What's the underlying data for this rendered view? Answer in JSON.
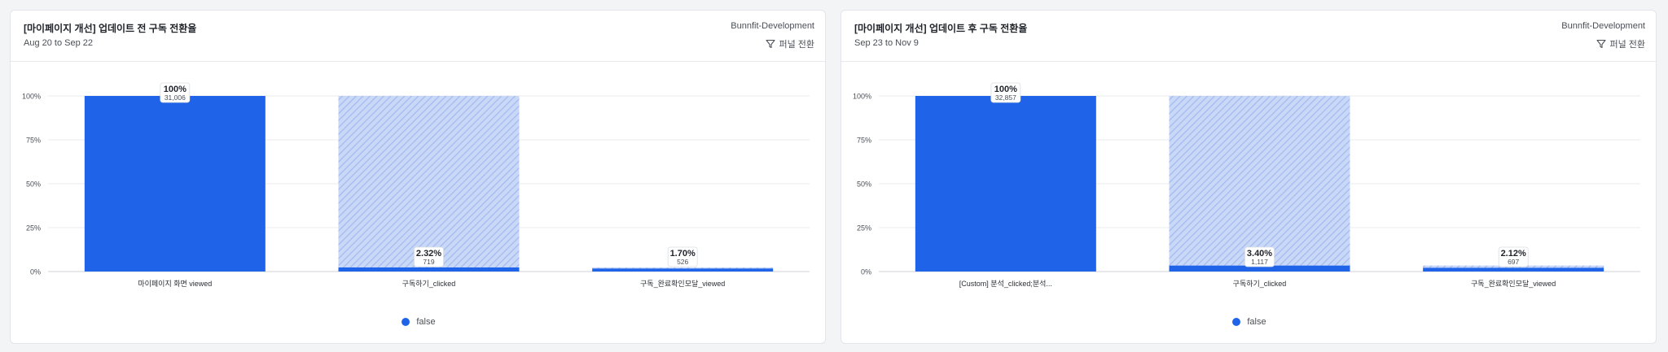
{
  "cards": [
    {
      "title": "[마이페이지 개선] 업데이트 전 구독 전환율",
      "date_range": "Aug 20 to Sep 22",
      "project": "Bunnfit-Development",
      "funnel_label": "퍼널 전환",
      "legend_label": "false",
      "chart_data": {
        "type": "bar",
        "categories": [
          "마이페이지 화면 viewed",
          "구독하기_clicked",
          "구독_완료확인모달_viewed"
        ],
        "percent": [
          100,
          2.32,
          1.7
        ],
        "percent_labels": [
          "100%",
          "2.32%",
          "1.70%"
        ],
        "counts": [
          "31,006",
          "719",
          "526"
        ],
        "y_ticks": [
          "0%",
          "25%",
          "50%",
          "75%",
          "100%"
        ],
        "ylim": [
          0,
          100
        ],
        "series": [
          {
            "name": "false",
            "color": "#1f63e9"
          }
        ]
      }
    },
    {
      "title": "[마이페이지 개선] 업데이트 후 구독 전환율",
      "date_range": "Sep 23 to Nov 9",
      "project": "Bunnfit-Development",
      "funnel_label": "퍼널 전환",
      "legend_label": "false",
      "chart_data": {
        "type": "bar",
        "categories": [
          "[Custom] 분석_clicked;분석...",
          "구독하기_clicked",
          "구독_완료확인모달_viewed"
        ],
        "percent": [
          100,
          3.4,
          2.12
        ],
        "percent_labels": [
          "100%",
          "3.40%",
          "2.12%"
        ],
        "counts": [
          "32,857",
          "1,117",
          "697"
        ],
        "y_ticks": [
          "0%",
          "25%",
          "50%",
          "75%",
          "100%"
        ],
        "ylim": [
          0,
          100
        ],
        "series": [
          {
            "name": "false",
            "color": "#1f63e9"
          }
        ]
      }
    }
  ]
}
